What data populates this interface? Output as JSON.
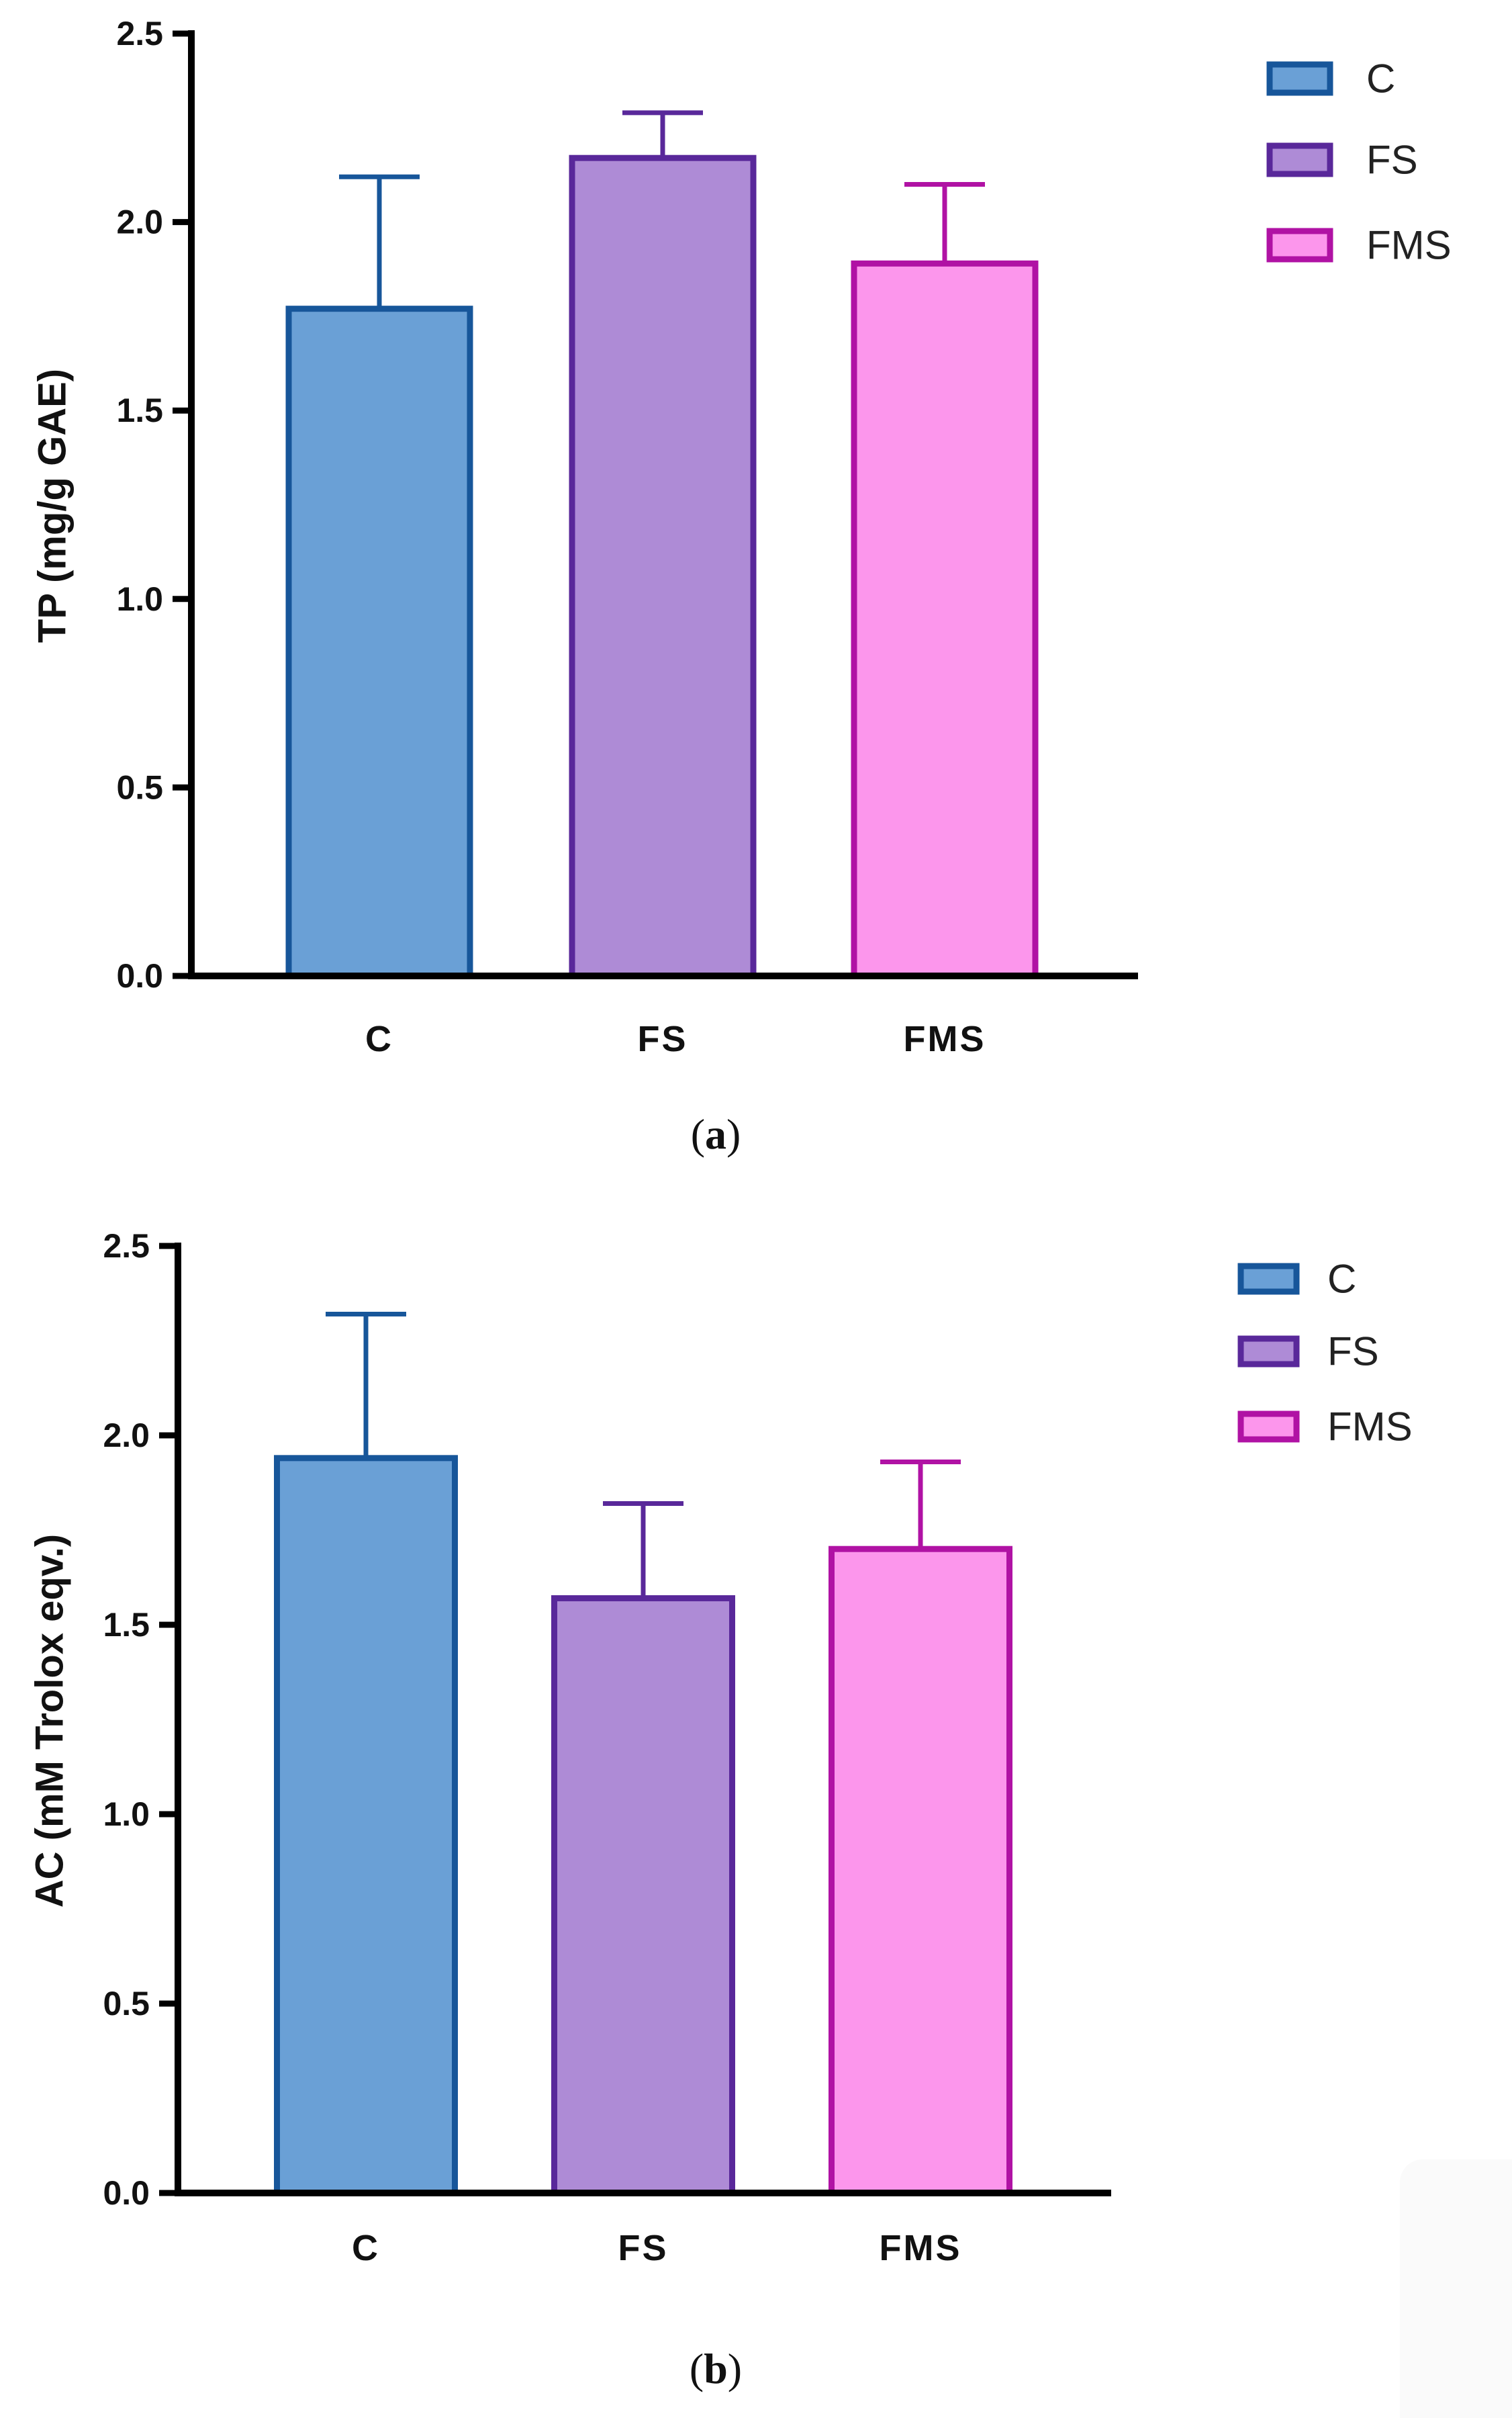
{
  "chart_data": [
    {
      "panel": "a",
      "type": "bar",
      "title": "",
      "xlabel": "",
      "ylabel": "TP (mg/g GAE)",
      "ylim": [
        0,
        2.5
      ],
      "yticks": [
        "0.0",
        "0.5",
        "1.0",
        "1.5",
        "2.0",
        "2.5"
      ],
      "categories": [
        "C",
        "FS",
        "FMS"
      ],
      "values": [
        1.77,
        2.17,
        1.89
      ],
      "errors": [
        0.35,
        0.12,
        0.21
      ],
      "legend": [
        "C",
        "FS",
        "FMS"
      ],
      "legend_position": "top-right",
      "grid": false
    },
    {
      "panel": "b",
      "type": "bar",
      "title": "",
      "xlabel": "",
      "ylabel": "AC (mM Trolox eqv.)",
      "ylim": [
        0,
        2.5
      ],
      "yticks": [
        "0.0",
        "0.5",
        "1.0",
        "1.5",
        "2.0",
        "2.5"
      ],
      "categories": [
        "C",
        "FS",
        "FMS"
      ],
      "values": [
        1.94,
        1.57,
        1.7
      ],
      "errors": [
        0.38,
        0.25,
        0.23
      ],
      "legend": [
        "C",
        "FS",
        "FMS"
      ],
      "legend_position": "top-right",
      "grid": false
    }
  ],
  "colors": {
    "C": {
      "fill": "#6aa0d6",
      "stroke": "#17569a"
    },
    "FS": {
      "fill": "#ae8bd6",
      "stroke": "#59289a"
    },
    "FMS": {
      "fill": "#fc96ec",
      "stroke": "#b012a4"
    }
  },
  "captions": {
    "a": {
      "open": "(",
      "letter": "a",
      "close": ")"
    },
    "b": {
      "open": "(",
      "letter": "b",
      "close": ")"
    }
  }
}
